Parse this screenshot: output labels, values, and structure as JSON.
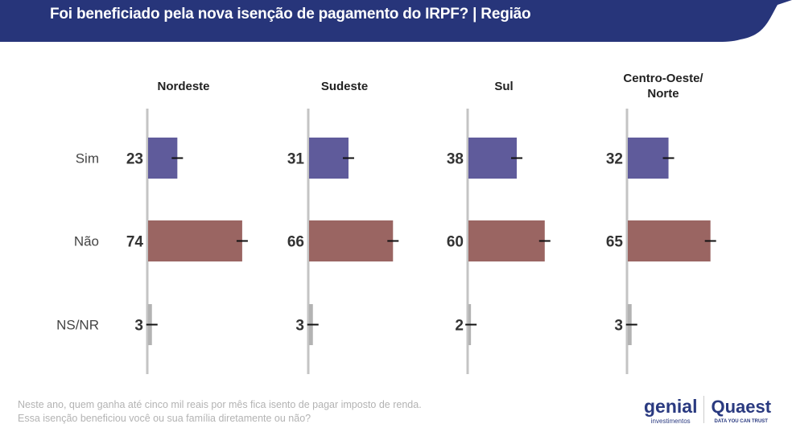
{
  "title": "Foi beneficiado pela nova isenção de pagamento do IRPF? | Região",
  "footnote": [
    "Neste ano, quem ganha até cinco mil reais por mês fica isento de pagar imposto de renda.",
    "Essa isenção beneficiou você ou sua família diretamente ou não?"
  ],
  "logos": {
    "genial": "genial",
    "genial_sub": "investimentos",
    "quaest": "Quaest",
    "quaest_sub": "DATA YOU CAN TRUST"
  },
  "colors": {
    "header": "#27357a",
    "sim": "#5f5b9b",
    "nao": "#9a6562",
    "nsnr": "#b3b3b3",
    "axis": "#c4c4c4"
  },
  "chart_data": {
    "type": "bar",
    "orientation": "horizontal",
    "categories": [
      "Sim",
      "Não",
      "NS/NR"
    ],
    "panels": [
      {
        "title": "Nordeste",
        "values": [
          23,
          74,
          3
        ]
      },
      {
        "title": "Sudeste",
        "values": [
          31,
          66,
          3
        ]
      },
      {
        "title": "Sul",
        "values": [
          38,
          60,
          2
        ]
      },
      {
        "title": "Centro-Oeste/\nNorte",
        "values": [
          32,
          65,
          3
        ]
      }
    ],
    "error_bars": true,
    "xlim": [
      0,
      100
    ]
  }
}
